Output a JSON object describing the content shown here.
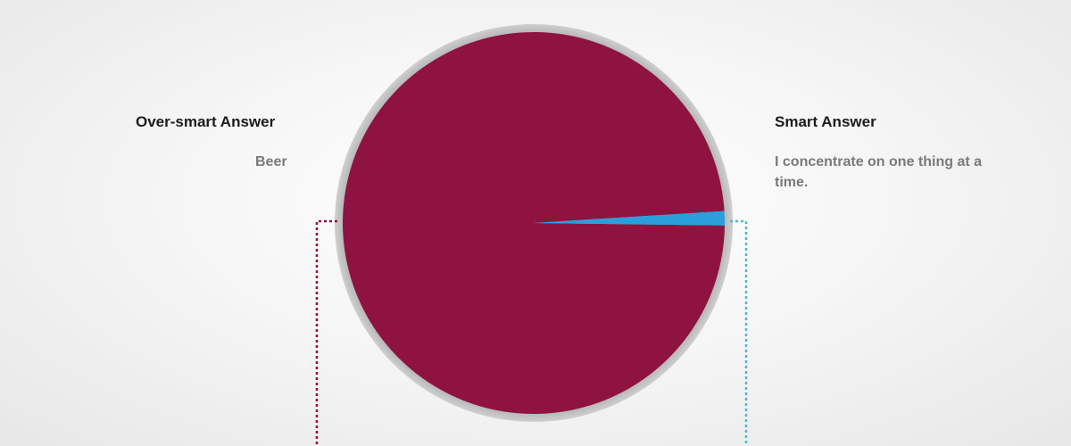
{
  "chart_data": {
    "type": "pie",
    "title": "",
    "slices": [
      {
        "label": "Over-smart Answer",
        "answer": "Beer",
        "value": 98.8,
        "color": "#8e1340"
      },
      {
        "label": "Smart Answer",
        "answer": "I concentrate on one thing at a time.",
        "value": 1.2,
        "color": "#2a9fdc"
      }
    ],
    "legend_placement": "left-and-right",
    "connector_colors": {
      "left": "#8e1340",
      "right": "#4fb8cf"
    }
  }
}
